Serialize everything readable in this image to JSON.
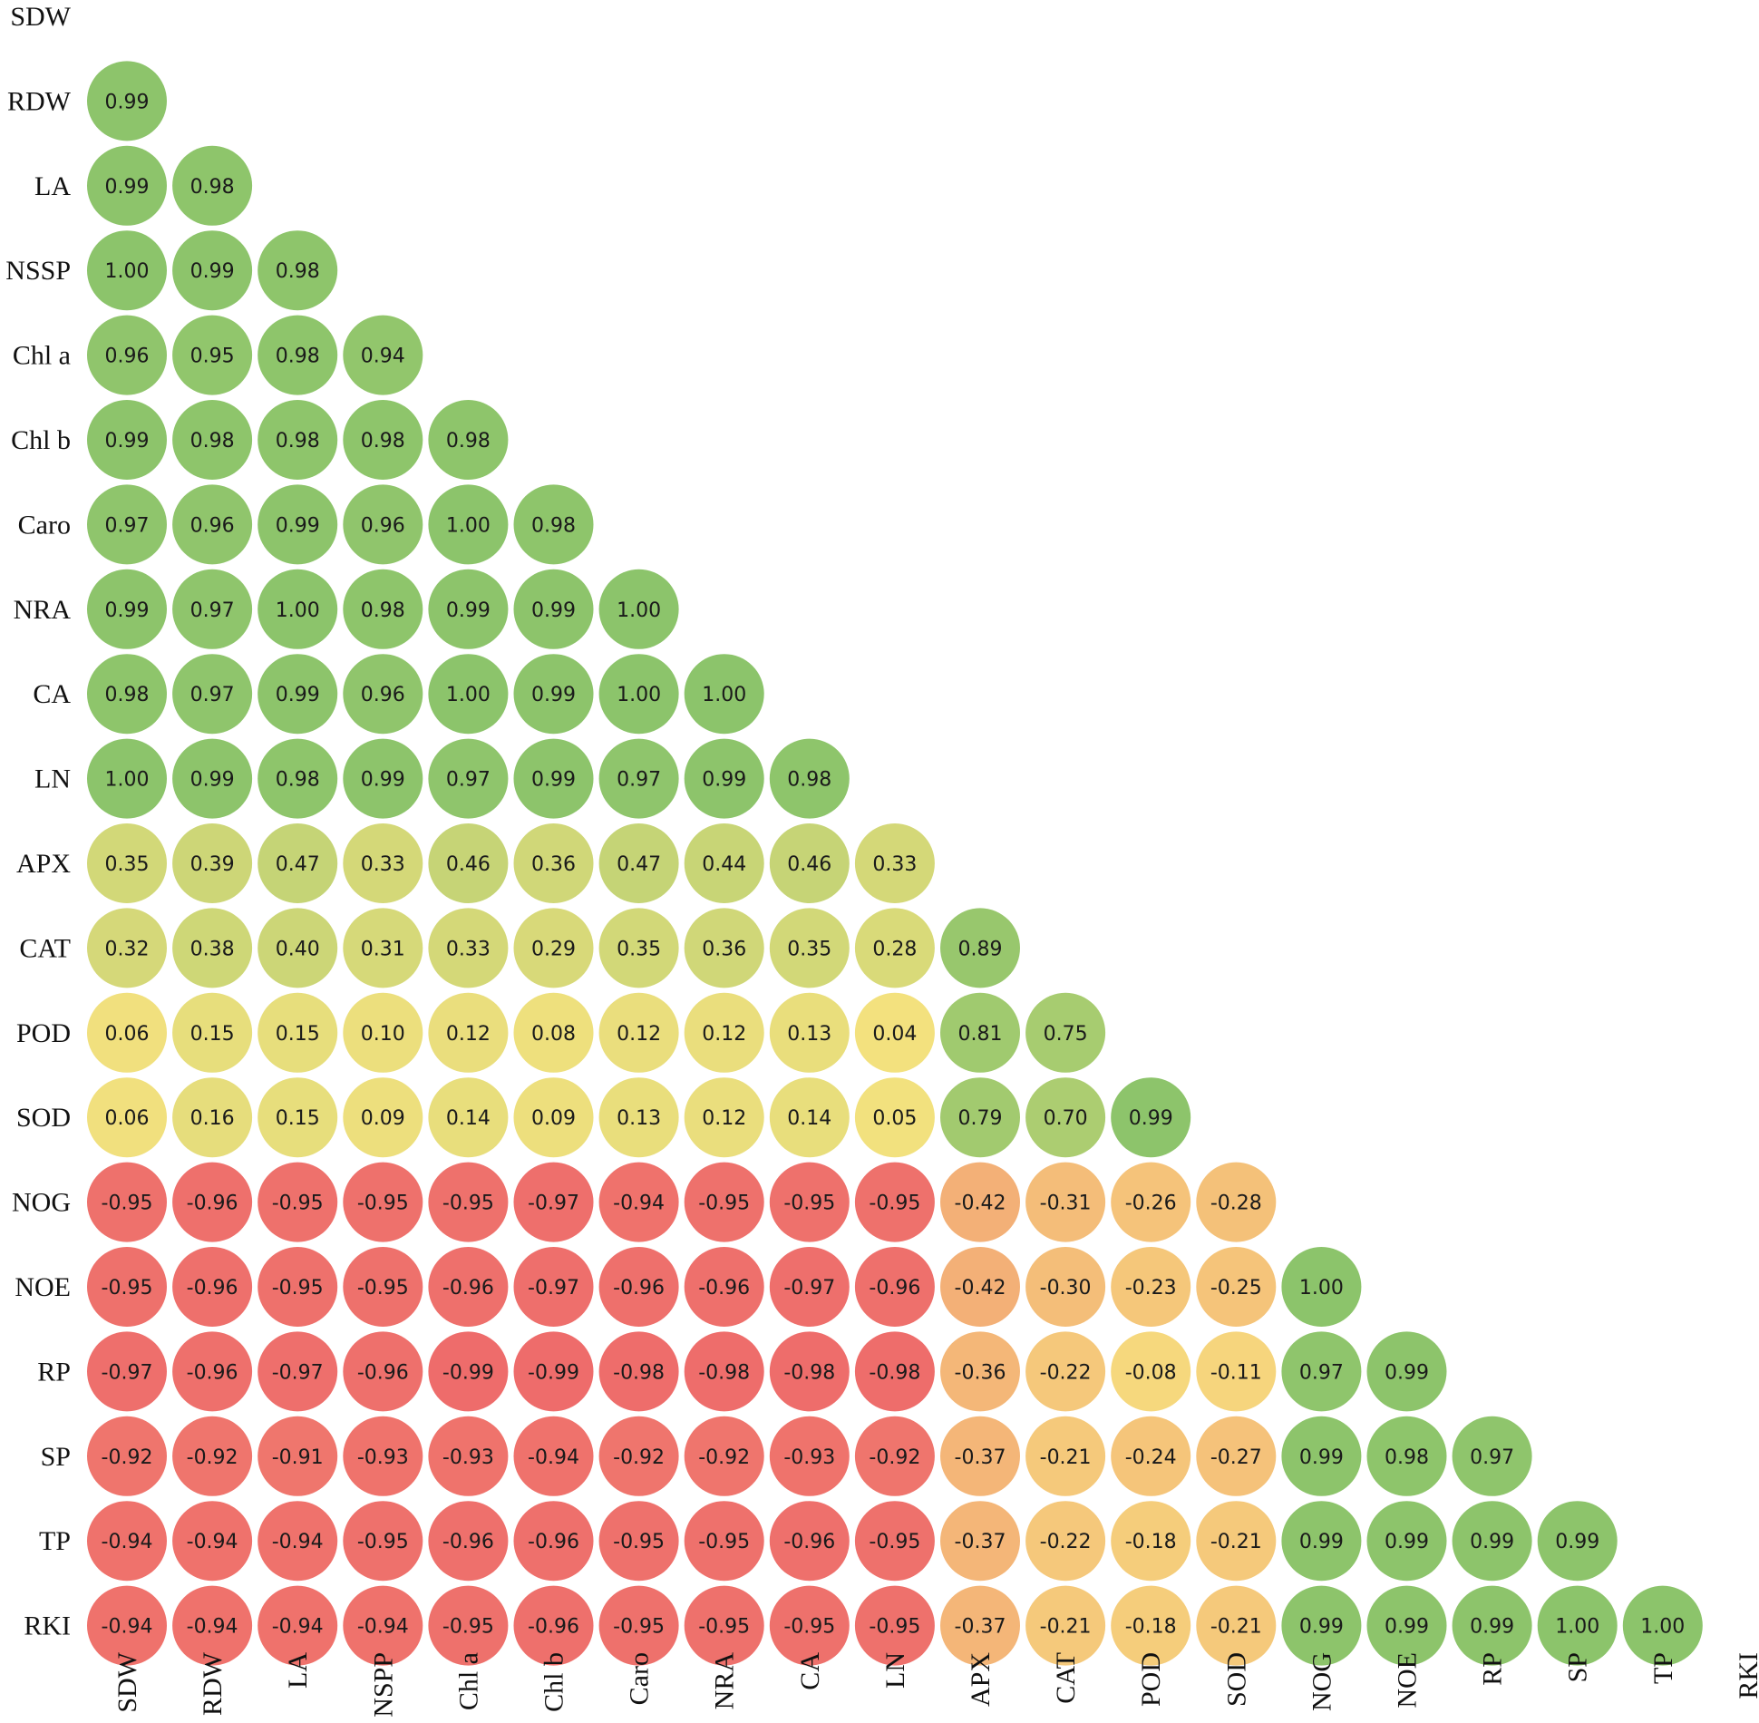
{
  "chart_data": {
    "type": "heatmap",
    "subtype": "lower-triangular correlation matrix (circles)",
    "row_labels": [
      "SDW",
      "RDW",
      "LA",
      "NSSP",
      "Chl a",
      "Chl b",
      "Caro",
      "NRA",
      "CA",
      "LN",
      "APX",
      "CAT",
      "POD",
      "SOD",
      "NOG",
      "NOE",
      "RP",
      "SP",
      "TP",
      "RKI"
    ],
    "col_labels": [
      "SDW",
      "RDW",
      "LA",
      "NSPP",
      "Chl a",
      "Chl b",
      "Caro",
      "NRA",
      "CA",
      "LN",
      "APX",
      "CAT",
      "POD",
      "SOD",
      "NOG",
      "NOE",
      "RP",
      "SP",
      "TP",
      "RKI"
    ],
    "values": [
      [],
      [
        "0.99"
      ],
      [
        "0.99",
        "0.98"
      ],
      [
        "1.00",
        "0.99",
        "0.98"
      ],
      [
        "0.96",
        "0.95",
        "0.98",
        "0.94"
      ],
      [
        "0.99",
        "0.98",
        "0.98",
        "0.98",
        "0.98"
      ],
      [
        "0.97",
        "0.96",
        "0.99",
        "0.96",
        "1.00",
        "0.98"
      ],
      [
        "0.99",
        "0.97",
        "1.00",
        "0.98",
        "0.99",
        "0.99",
        "1.00"
      ],
      [
        "0.98",
        "0.97",
        "0.99",
        "0.96",
        "1.00",
        "0.99",
        "1.00",
        "1.00"
      ],
      [
        "1.00",
        "0.99",
        "0.98",
        "0.99",
        "0.97",
        "0.99",
        "0.97",
        "0.99",
        "0.98"
      ],
      [
        "0.35",
        "0.39",
        "0.47",
        "0.33",
        "0.46",
        "0.36",
        "0.47",
        "0.44",
        "0.46",
        "0.33"
      ],
      [
        "0.32",
        "0.38",
        "0.40",
        "0.31",
        "0.33",
        "0.29",
        "0.35",
        "0.36",
        "0.35",
        "0.28",
        "0.89"
      ],
      [
        "0.06",
        "0.15",
        "0.15",
        "0.10",
        "0.12",
        "0.08",
        "0.12",
        "0.12",
        "0.13",
        "0.04",
        "0.81",
        "0.75"
      ],
      [
        "0.06",
        "0.16",
        "0.15",
        "0.09",
        "0.14",
        "0.09",
        "0.13",
        "0.12",
        "0.14",
        "0.05",
        "0.79",
        "0.70",
        "0.99"
      ],
      [
        "-0.95",
        "-0.96",
        "-0.95",
        "-0.95",
        "-0.95",
        "-0.97",
        "-0.94",
        "-0.95",
        "-0.95",
        "-0.95",
        "-0.42",
        "-0.31",
        "-0.26",
        "-0.28"
      ],
      [
        "-0.95",
        "-0.96",
        "-0.95",
        "-0.95",
        "-0.96",
        "-0.97",
        "-0.96",
        "-0.96",
        "-0.97",
        "-0.96",
        "-0.42",
        "-0.30",
        "-0.23",
        "-0.25",
        "1.00"
      ],
      [
        "-0.97",
        "-0.96",
        "-0.97",
        "-0.96",
        "-0.99",
        "-0.99",
        "-0.98",
        "-0.98",
        "-0.98",
        "-0.98",
        "-0.36",
        "-0.22",
        "-0.08",
        "-0.11",
        "0.97",
        "0.99"
      ],
      [
        "-0.92",
        "-0.92",
        "-0.91",
        "-0.93",
        "-0.93",
        "-0.94",
        "-0.92",
        "-0.92",
        "-0.93",
        "-0.92",
        "-0.37",
        "-0.21",
        "-0.24",
        "-0.27",
        "0.99",
        "0.98",
        "0.97"
      ],
      [
        "-0.94",
        "-0.94",
        "-0.94",
        "-0.95",
        "-0.96",
        "-0.96",
        "-0.95",
        "-0.95",
        "-0.96",
        "-0.95",
        "-0.37",
        "-0.22",
        "-0.18",
        "-0.21",
        "0.99",
        "0.99",
        "0.99",
        "0.99"
      ],
      [
        "-0.94",
        "-0.94",
        "-0.94",
        "-0.94",
        "-0.95",
        "-0.96",
        "-0.95",
        "-0.95",
        "-0.95",
        "-0.95",
        "-0.37",
        "-0.21",
        "-0.18",
        "-0.21",
        "0.99",
        "0.99",
        "0.99",
        "1.00",
        "1.00"
      ]
    ],
    "color_scale": {
      "min": -1,
      "mid": 0,
      "max": 1,
      "min_color": "#ee6b6b",
      "mid_color": "#f7e27f",
      "max_color": "#8cc46b"
    },
    "grid": false,
    "legend": "none"
  }
}
